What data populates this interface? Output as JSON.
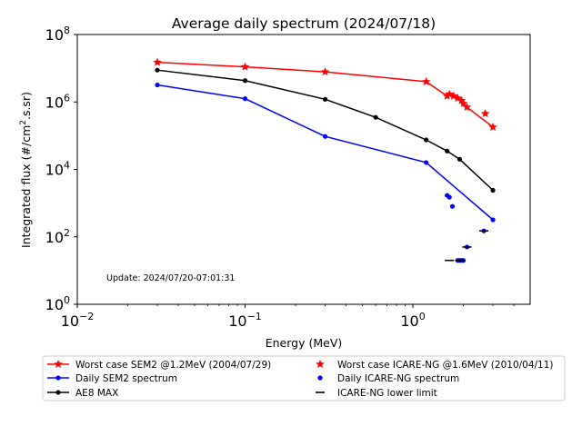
{
  "chart_data": {
    "type": "line",
    "title": "Average daily spectrum (2024/07/18)",
    "xlabel": "Energy (MeV)",
    "ylabel_prefix": "Integrated flux (#/cm",
    "ylabel_sup": "2",
    "ylabel_suffix": ".s.sr)",
    "xscale": "log",
    "yscale": "log",
    "xlim": [
      0.01,
      5
    ],
    "ylim": [
      1,
      100000000
    ],
    "x_ticks": [
      {
        "value": 0.01,
        "base": "10",
        "exp": "−2"
      },
      {
        "value": 0.1,
        "base": "10",
        "exp": "−1"
      },
      {
        "value": 1,
        "base": "10",
        "exp": "0"
      }
    ],
    "y_ticks": [
      {
        "value": 1,
        "base": "10",
        "exp": "0"
      },
      {
        "value": 100,
        "base": "10",
        "exp": "2"
      },
      {
        "value": 10000,
        "base": "10",
        "exp": "4"
      },
      {
        "value": 1000000,
        "base": "10",
        "exp": "6"
      },
      {
        "value": 100000000,
        "base": "10",
        "exp": "8"
      }
    ],
    "annotation": "Update: 2024/07/20-07:01:31",
    "legend_position": "below-plot",
    "series": [
      {
        "name": "Worst case SEM2 @1.2MeV (2004/07/29)",
        "color": "#ff0000",
        "line": true,
        "marker": "star",
        "points": [
          [
            0.03,
            15000000
          ],
          [
            0.1,
            11000000
          ],
          [
            0.3,
            7800000
          ],
          [
            1.2,
            4000000
          ],
          [
            1.6,
            1500000
          ],
          [
            1.65,
            1700000
          ],
          [
            1.75,
            1500000
          ],
          [
            1.85,
            1300000
          ],
          [
            1.95,
            1100000
          ],
          [
            2.0,
            900000
          ],
          [
            2.1,
            700000
          ],
          [
            3.0,
            180000
          ]
        ]
      },
      {
        "name": "Worst case ICARE-NG @1.6MeV (2010/04/11)",
        "color": "#ff0000",
        "line": false,
        "marker": "star",
        "points": [
          [
            2.7,
            450000
          ]
        ]
      },
      {
        "name": "Daily SEM2 spectrum",
        "color": "#0000ff",
        "line": true,
        "marker": "dot",
        "points": [
          [
            0.03,
            3200000
          ],
          [
            0.1,
            1250000
          ],
          [
            0.3,
            95000
          ],
          [
            1.2,
            16000
          ],
          [
            3.0,
            320
          ]
        ]
      },
      {
        "name": "Daily ICARE-NG spectrum",
        "color": "#0000ff",
        "line": false,
        "marker": "dot",
        "points": [
          [
            1.6,
            1700
          ],
          [
            1.65,
            1500
          ],
          [
            1.72,
            800
          ],
          [
            1.85,
            20
          ],
          [
            1.9,
            20
          ],
          [
            1.95,
            20
          ],
          [
            2.0,
            20
          ],
          [
            2.1,
            50
          ],
          [
            2.65,
            150
          ]
        ]
      },
      {
        "name": "AE8 MAX",
        "color": "#000000",
        "line": true,
        "marker": "dot",
        "points": [
          [
            0.03,
            8800000
          ],
          [
            0.1,
            4300000
          ],
          [
            0.3,
            1200000
          ],
          [
            0.6,
            350000
          ],
          [
            1.2,
            75000
          ],
          [
            1.6,
            35000
          ],
          [
            1.9,
            20000
          ],
          [
            3.0,
            2400
          ]
        ]
      },
      {
        "name": "ICARE-NG lower limit",
        "color": "#000000",
        "line": false,
        "marker": "hline",
        "points": [
          [
            1.65,
            20
          ],
          [
            1.9,
            20
          ],
          [
            2.1,
            50
          ],
          [
            2.65,
            150
          ]
        ]
      }
    ],
    "legend": [
      {
        "label": "Worst case SEM2 @1.2MeV (2004/07/29)",
        "color": "#ff0000",
        "line": true,
        "marker": "star"
      },
      {
        "label": "Worst case ICARE-NG @1.6MeV (2010/04/11)",
        "color": "#ff0000",
        "line": false,
        "marker": "star"
      },
      {
        "label": "Daily SEM2 spectrum",
        "color": "#0000ff",
        "line": true,
        "marker": "dot"
      },
      {
        "label": "Daily ICARE-NG spectrum",
        "color": "#0000ff",
        "line": false,
        "marker": "dot"
      },
      {
        "label": "AE8 MAX",
        "color": "#000000",
        "line": true,
        "marker": "dot"
      },
      {
        "label": "ICARE-NG lower limit",
        "color": "#000000",
        "line": false,
        "marker": "hline"
      }
    ]
  }
}
